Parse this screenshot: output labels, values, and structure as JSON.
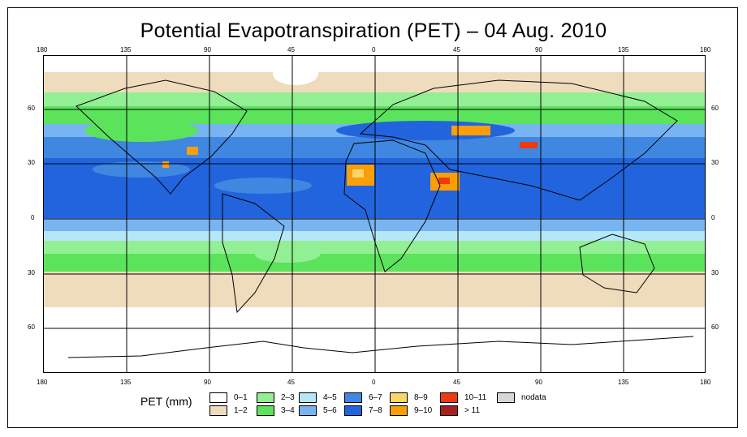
{
  "title": "Potential Evapotranspiration (PET) – 04 Aug. 2010",
  "axes": {
    "lon_top": [
      "180",
      "135",
      "90",
      "45",
      "0",
      "45",
      "90",
      "135",
      "180"
    ],
    "lon_bottom": [
      "180",
      "135",
      "90",
      "45",
      "0",
      "45",
      "90",
      "135",
      "180"
    ],
    "lat_left": [
      "60",
      "30",
      "0",
      "30",
      "60"
    ],
    "lat_right": [
      "60",
      "30",
      "0",
      "30",
      "60"
    ]
  },
  "legend": {
    "title": "PET (mm)",
    "items": [
      {
        "label": "0–1",
        "color": "#ffffff"
      },
      {
        "label": "1–2",
        "color": "#efdcbd"
      },
      {
        "label": "2–3",
        "color": "#93ef93"
      },
      {
        "label": "3–4",
        "color": "#5ce35c"
      },
      {
        "label": "4–5",
        "color": "#b4e8f8"
      },
      {
        "label": "5–6",
        "color": "#78b4f2"
      },
      {
        "label": "6–7",
        "color": "#3f87e0"
      },
      {
        "label": "7–8",
        "color": "#2264dd"
      },
      {
        "label": "8–9",
        "color": "#fbd56a"
      },
      {
        "label": "9–10",
        "color": "#fb9e07"
      },
      {
        "label": "10–11",
        "color": "#ee3a0f"
      },
      {
        "label": "> 11",
        "color": "#a81f1f"
      },
      {
        "label": "nodata",
        "color": "#d6d6d6"
      }
    ]
  }
}
